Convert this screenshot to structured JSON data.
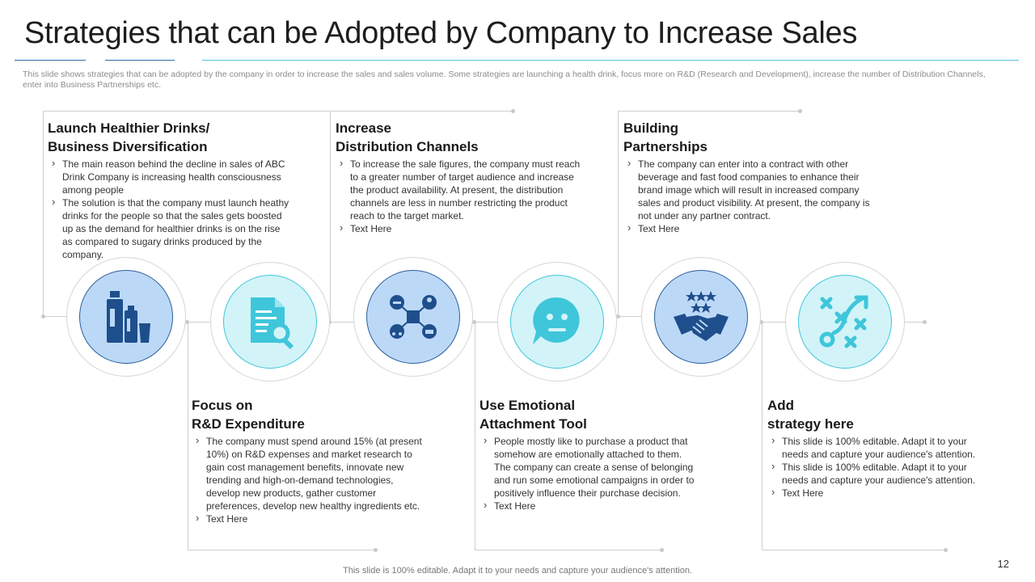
{
  "title": "Strategies that can be Adopted by Company to Increase Sales",
  "subtitle": "This slide shows strategies that can be adopted by the company in order to increase the sales and sales volume. Some strategies are launching a health drink, focus more on R&D (Research and Development), increase the number of Distribution Channels, enter into  Business Partnerships etc.",
  "cards": [
    {
      "title": "Launch Healthier Drinks/\nBusiness Diversification",
      "bullets": [
        "The main reason behind the decline in sales of ABC Drink Company is increasing health consciousness among people",
        "The solution is that the company must launch heathy drinks for the people so that the sales gets boosted up as the demand for healthier drinks is on the rise as compared to sugary drinks produced  by the company."
      ]
    },
    {
      "title": "Focus on\nR&D Expenditure",
      "bullets": [
        "The company must spend around 15% (at present 10%) on R&D expenses and market research to gain cost management benefits, innovate  new trending and high-on-demand technologies, develop new products, gather customer preferences,  develop new healthy ingredients etc.",
        "Text Here"
      ]
    },
    {
      "title": "Increase\nDistribution Channels",
      "bullets": [
        "To increase the sale figures, the company must reach to a greater number of target audience and increase the product availability.  At present, the distribution channels are less in number restricting the product reach to the target market.",
        "Text Here"
      ]
    },
    {
      "title": "Use Emotional\n Attachment Tool",
      "bullets": [
        "People mostly like to purchase a product that somehow are emotionally attached to them. The company can create a sense of belonging and run some emotional campaigns in order to positively influence their purchase decision.",
        "Text Here"
      ]
    },
    {
      "title": "Building\nPartnerships",
      "bullets": [
        "The company can enter into a contract with other beverage  and fast food companies to enhance their brand image which will result in increased company sales and product visibility. At present, the company is not under any partner contract.",
        "Text Here"
      ]
    },
    {
      "title": "Add\nstrategy here",
      "bullets": [
        "This slide is 100% editable. Adapt it to your needs and capture your audience's attention.",
        "This slide is 100% editable. Adapt it to your needs and capture your audience's attention.",
        "Text Here"
      ]
    }
  ],
  "icons": [
    {
      "name": "drinks-icon",
      "style": "blue"
    },
    {
      "name": "document-search-icon",
      "style": "aqua"
    },
    {
      "name": "distribution-network-icon",
      "style": "blue"
    },
    {
      "name": "emoji-speech-bubble-icon",
      "style": "aqua"
    },
    {
      "name": "handshake-stars-icon",
      "style": "blue"
    },
    {
      "name": "strategy-play-icon",
      "style": "aqua"
    }
  ],
  "colors": {
    "dark_blue": "#1e4f8c",
    "aqua": "#3fc6db"
  },
  "footer": "This slide is 100% editable. Adapt it to your needs and capture your audience's attention.",
  "page_number": "12"
}
